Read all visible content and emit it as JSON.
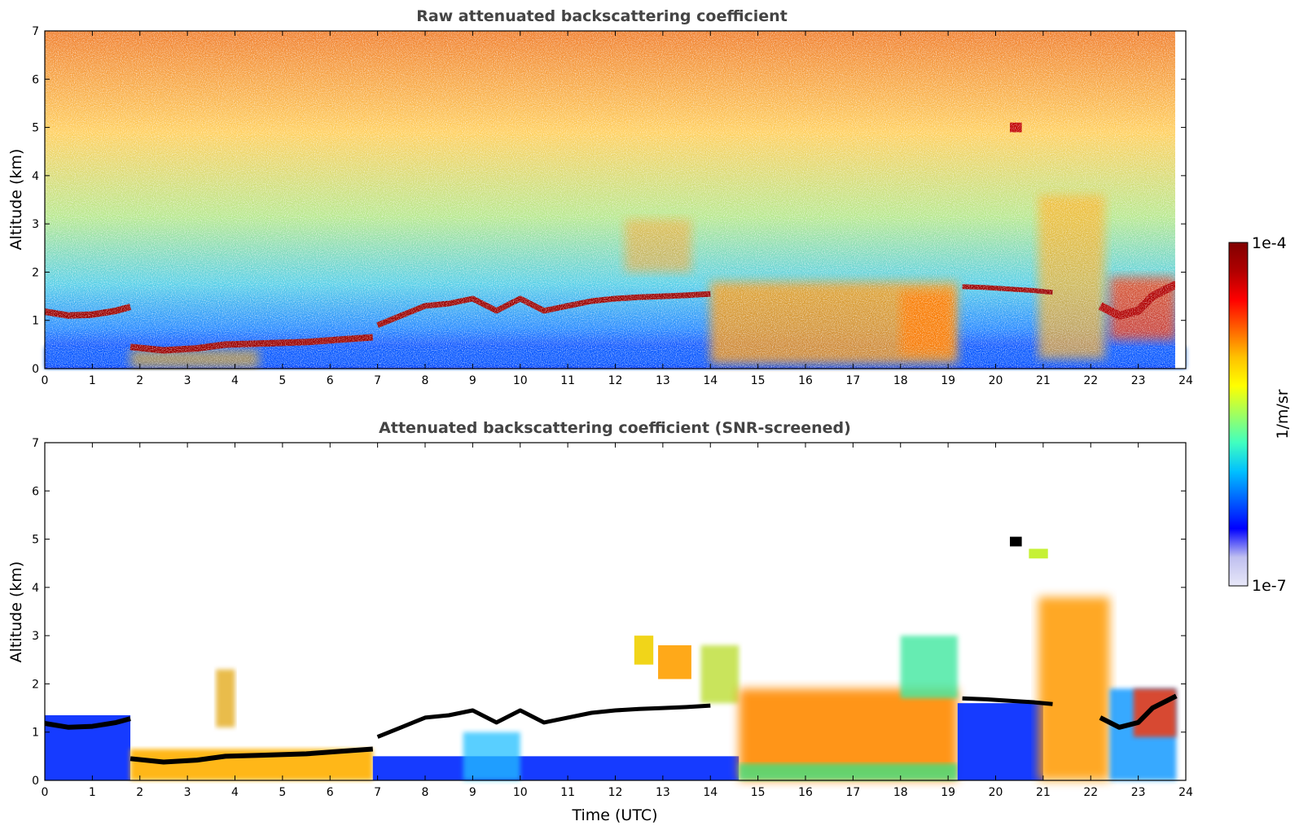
{
  "chart_data": [
    {
      "type": "heatmap",
      "title": "Raw attenuated backscattering coefficient",
      "xlabel": "",
      "ylabel": "Altitude (km)",
      "xlim": [
        0,
        24
      ],
      "ylim": [
        0,
        7
      ],
      "x_ticks": [
        "0",
        "1",
        "2",
        "3",
        "4",
        "5",
        "6",
        "7",
        "8",
        "9",
        "10",
        "11",
        "12",
        "13",
        "14",
        "15",
        "16",
        "17",
        "18",
        "19",
        "20",
        "21",
        "22",
        "23",
        "24"
      ],
      "y_ticks": [
        "0",
        "1",
        "2",
        "3",
        "4",
        "5",
        "6",
        "7"
      ],
      "background_noise": "high (noisy, values increase with altitude)",
      "features": [
        {
          "feature": "cloud layer",
          "x": [
            0,
            1.8
          ],
          "y": 1.18
        },
        {
          "feature": "cloud layer",
          "x": [
            1.8,
            6.9
          ],
          "y": 0.45
        },
        {
          "feature": "cloud layer",
          "x": [
            7,
            14
          ],
          "y": 1.35
        },
        {
          "feature": "aerosol",
          "x": [
            12.3,
            13.6
          ],
          "y": 2.6
        },
        {
          "feature": "cloud layer",
          "x": [
            19.2,
            21
          ],
          "y": 1.65
        },
        {
          "feature": "cloud",
          "x": [
            20.3,
            20.6
          ],
          "y": 5.0
        },
        {
          "feature": "aerosol",
          "x": [
            14,
            19.2
          ],
          "y": 0.9
        },
        {
          "feature": "aerosol",
          "x": [
            21,
            22.2
          ],
          "y": 1.2
        },
        {
          "feature": "cloud layer",
          "x": [
            22.2,
            23.8
          ],
          "y": 1.4
        }
      ]
    },
    {
      "type": "heatmap",
      "title": "Attenuated backscattering coefficient (SNR-screened)",
      "xlabel": "Time (UTC)",
      "ylabel": "Altitude (km)",
      "xlim": [
        0,
        24
      ],
      "ylim": [
        0,
        7
      ],
      "x_ticks": [
        "0",
        "1",
        "2",
        "3",
        "4",
        "5",
        "6",
        "7",
        "8",
        "9",
        "10",
        "11",
        "12",
        "13",
        "14",
        "15",
        "16",
        "17",
        "18",
        "19",
        "20",
        "21",
        "22",
        "23",
        "24"
      ],
      "y_ticks": [
        "0",
        "1",
        "2",
        "3",
        "4",
        "5",
        "6",
        "7"
      ],
      "background_noise": "screened (white)"
    }
  ],
  "colorbar": {
    "label": "1/m/sr",
    "max_label": "1e-4",
    "min_label": "1e-7",
    "colormap": "jet",
    "colors": [
      "#e8e8f8",
      "#c0c0f0",
      "#0000ff",
      "#0060ff",
      "#00c0ff",
      "#40ffc0",
      "#a0ff60",
      "#ffff00",
      "#ffc000",
      "#ff6000",
      "#ff0000",
      "#b00000",
      "#800000"
    ]
  }
}
